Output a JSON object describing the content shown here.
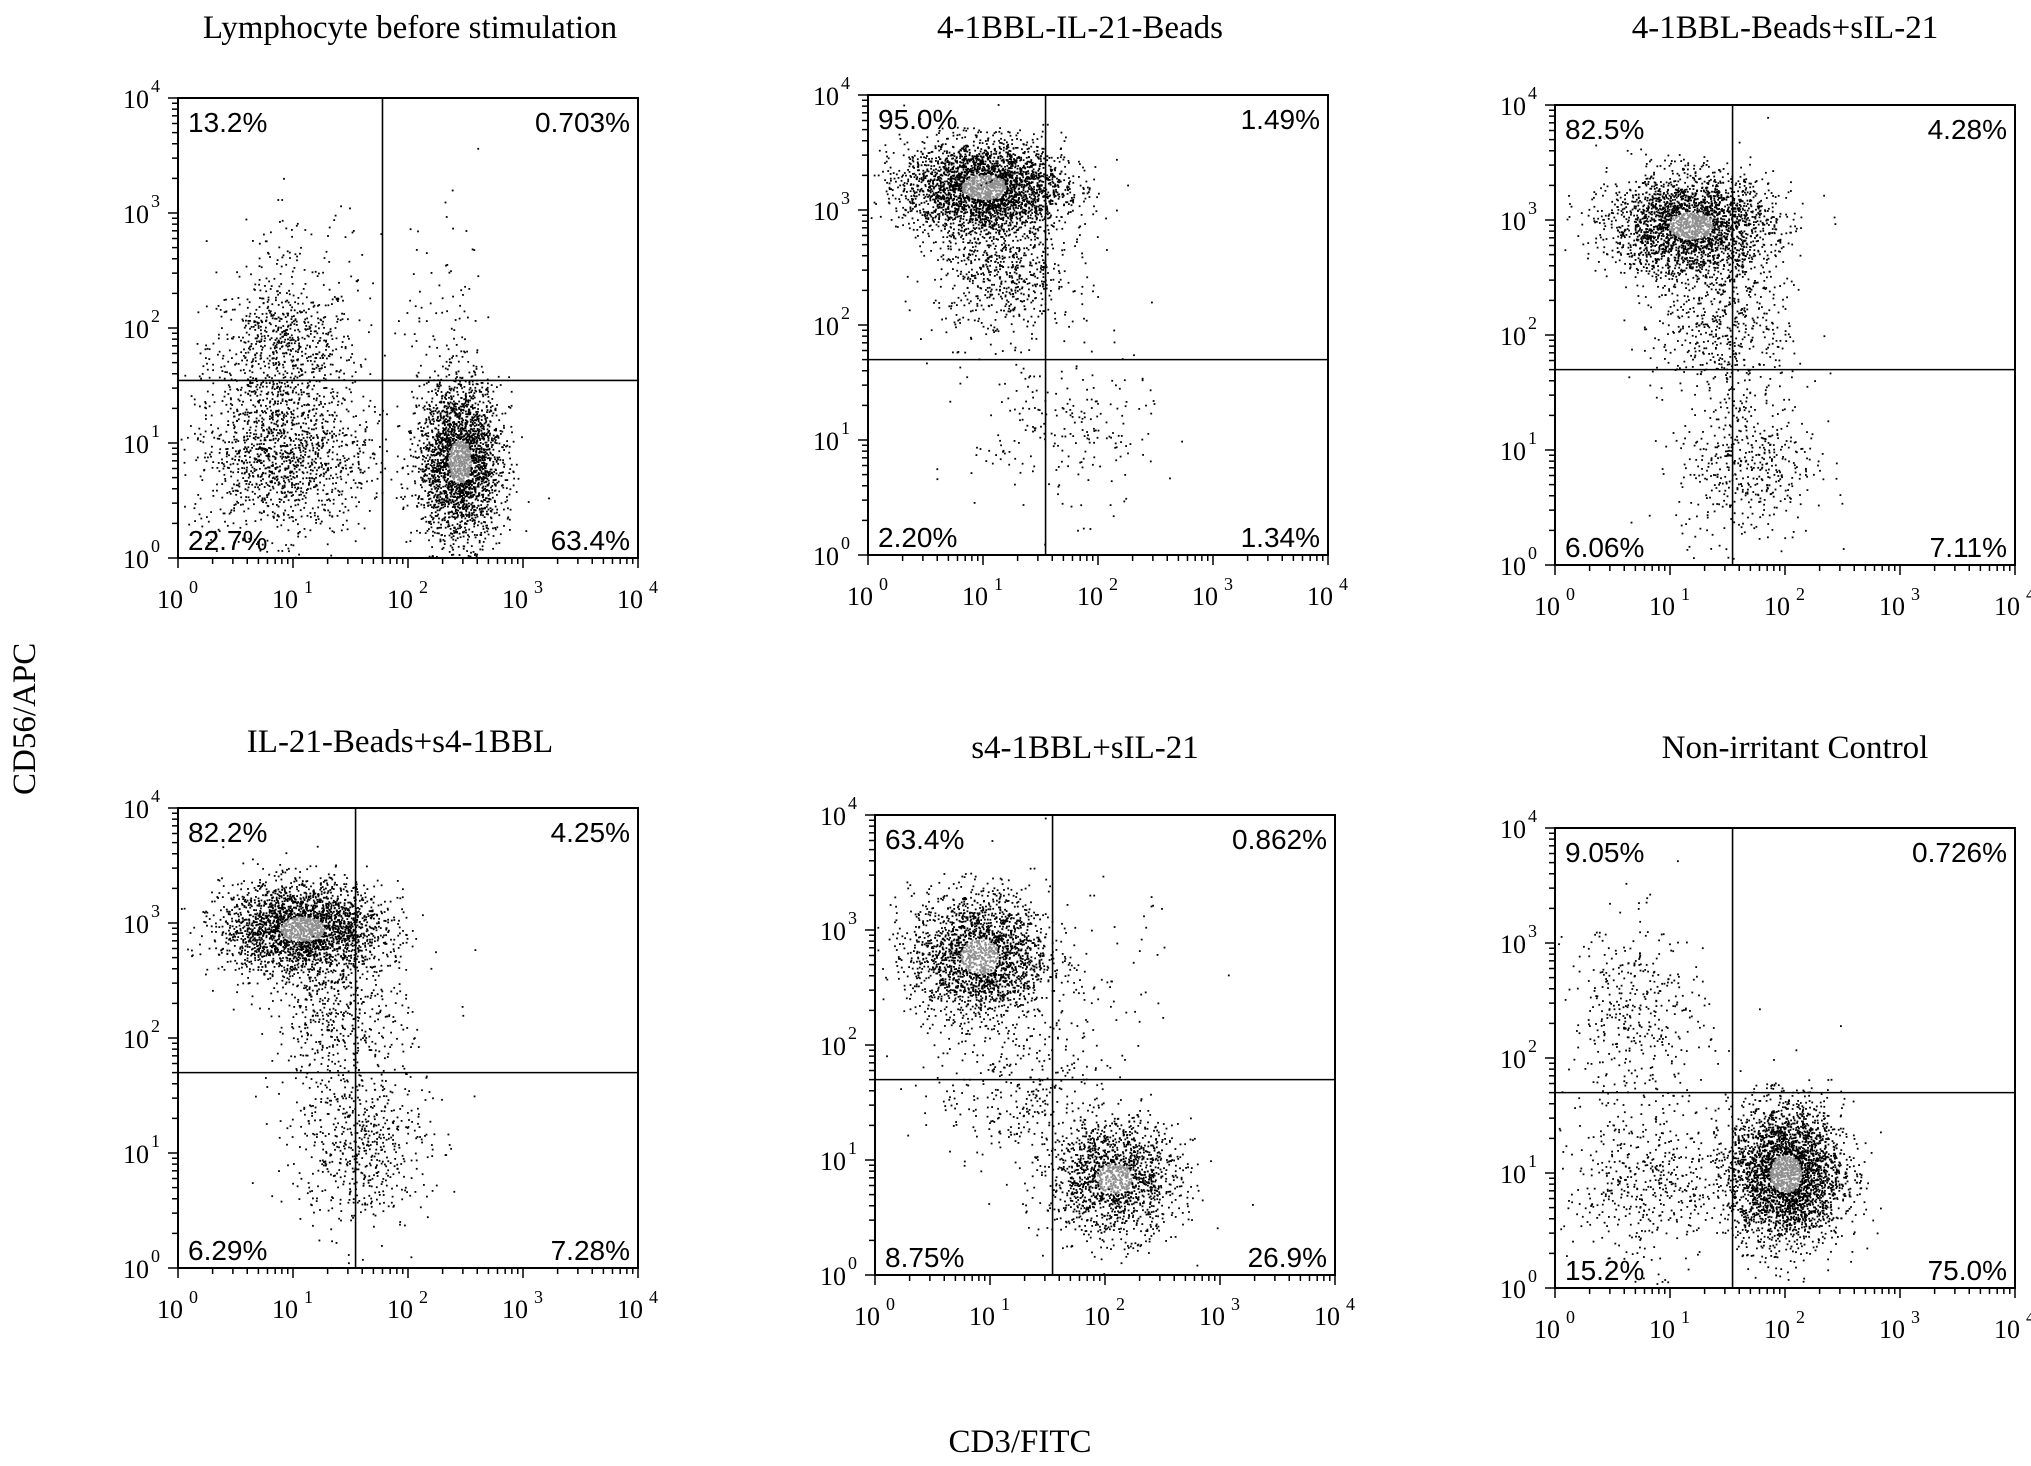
{
  "figure": {
    "ylabel": "CD56/APC",
    "xlabel": "CD3/FITC"
  },
  "axis": {
    "scale": "log",
    "range": [
      1,
      10000
    ],
    "tick_labels": [
      {
        "base": "10",
        "exp": "0"
      },
      {
        "base": "10",
        "exp": "1"
      },
      {
        "base": "10",
        "exp": "2"
      },
      {
        "base": "10",
        "exp": "3"
      },
      {
        "base": "10",
        "exp": "4"
      }
    ]
  },
  "style": {
    "event_color": "#000000",
    "dense_color": "#8f8f8f"
  },
  "chart_data": [
    {
      "type": "scatter",
      "title": "Lymphocyte before stimulation",
      "xscale": "log",
      "yscale": "log",
      "xlim": [
        1,
        10000
      ],
      "ylim": [
        1,
        10000
      ],
      "gate": {
        "x": 60,
        "y": 35
      },
      "quadrants": {
        "upper_left": "13.2%",
        "upper_right": "0.703%",
        "lower_left": "22.7%",
        "lower_right": "63.4%"
      },
      "clusters": [
        {
          "x": 8,
          "y": 70,
          "sx": 0.32,
          "sy": 0.28,
          "n": 700
        },
        {
          "x": 8,
          "y": 8,
          "sx": 0.38,
          "sy": 0.35,
          "n": 1400
        },
        {
          "x": 280,
          "y": 7,
          "sx": 0.18,
          "sy": 0.35,
          "n": 2600
        },
        {
          "x": 10,
          "y": 400,
          "sx": 0.3,
          "sy": 0.25,
          "n": 80
        },
        {
          "x": 200,
          "y": 120,
          "sx": 0.25,
          "sy": 0.45,
          "n": 70
        }
      ]
    },
    {
      "type": "scatter",
      "title": "4-1BBL-IL-21-Beads",
      "xscale": "log",
      "yscale": "log",
      "xlim": [
        1,
        10000
      ],
      "ylim": [
        1,
        10000
      ],
      "gate": {
        "x": 35,
        "y": 50
      },
      "quadrants": {
        "upper_left": "95.0%",
        "upper_right": "1.49%",
        "lower_left": "2.20%",
        "lower_right": "1.34%"
      },
      "clusters": [
        {
          "x": 10,
          "y": 1600,
          "sx": 0.35,
          "sy": 0.2,
          "n": 3000
        },
        {
          "x": 15,
          "y": 300,
          "sx": 0.3,
          "sy": 0.3,
          "n": 700
        },
        {
          "x": 50,
          "y": 12,
          "sx": 0.4,
          "sy": 0.35,
          "n": 220
        }
      ]
    },
    {
      "type": "scatter",
      "title": "4-1BBL-Beads+sIL-21",
      "xscale": "log",
      "yscale": "log",
      "xlim": [
        1,
        10000
      ],
      "ylim": [
        1,
        10000
      ],
      "gate": {
        "x": 35,
        "y": 50
      },
      "quadrants": {
        "upper_left": "82.5%",
        "upper_right": "4.28%",
        "lower_left": "6.06%",
        "lower_right": "7.11%"
      },
      "clusters": [
        {
          "x": 15,
          "y": 900,
          "sx": 0.35,
          "sy": 0.22,
          "n": 2700
        },
        {
          "x": 30,
          "y": 120,
          "sx": 0.3,
          "sy": 0.3,
          "n": 500
        },
        {
          "x": 45,
          "y": 8,
          "sx": 0.3,
          "sy": 0.35,
          "n": 500
        }
      ]
    },
    {
      "type": "scatter",
      "title": "IL-21-Beads+s4-1BBL",
      "xscale": "log",
      "yscale": "log",
      "xlim": [
        1,
        10000
      ],
      "ylim": [
        1,
        10000
      ],
      "gate": {
        "x": 35,
        "y": 50
      },
      "quadrants": {
        "upper_left": "82.2%",
        "upper_right": "4.25%",
        "lower_left": "6.29%",
        "lower_right": "7.28%"
      },
      "clusters": [
        {
          "x": 12,
          "y": 900,
          "sx": 0.35,
          "sy": 0.2,
          "n": 2700
        },
        {
          "x": 25,
          "y": 150,
          "sx": 0.3,
          "sy": 0.3,
          "n": 450
        },
        {
          "x": 38,
          "y": 12,
          "sx": 0.3,
          "sy": 0.35,
          "n": 600
        }
      ]
    },
    {
      "type": "scatter",
      "title": "s4-1BBL+sIL-21",
      "xscale": "log",
      "yscale": "log",
      "xlim": [
        1,
        10000
      ],
      "ylim": [
        1,
        10000
      ],
      "gate": {
        "x": 35,
        "y": 50
      },
      "quadrants": {
        "upper_left": "63.4%",
        "upper_right": "0.862%",
        "lower_left": "8.75%",
        "lower_right": "26.9%"
      },
      "clusters": [
        {
          "x": 8,
          "y": 600,
          "sx": 0.3,
          "sy": 0.28,
          "n": 2200
        },
        {
          "x": 120,
          "y": 7,
          "sx": 0.28,
          "sy": 0.25,
          "n": 1600
        },
        {
          "x": 20,
          "y": 40,
          "sx": 0.4,
          "sy": 0.35,
          "n": 350
        },
        {
          "x": 100,
          "y": 300,
          "sx": 0.3,
          "sy": 0.4,
          "n": 60
        }
      ]
    },
    {
      "type": "scatter",
      "title": "Non-irritant Control",
      "xscale": "log",
      "yscale": "log",
      "xlim": [
        1,
        10000
      ],
      "ylim": [
        1,
        10000
      ],
      "gate": {
        "x": 35,
        "y": 50
      },
      "quadrants": {
        "upper_left": "9.05%",
        "upper_right": "0.726%",
        "lower_left": "15.2%",
        "lower_right": "75.0%"
      },
      "clusters": [
        {
          "x": 5,
          "y": 250,
          "sx": 0.3,
          "sy": 0.4,
          "n": 400
        },
        {
          "x": 100,
          "y": 10,
          "sx": 0.25,
          "sy": 0.3,
          "n": 3200
        },
        {
          "x": 6,
          "y": 8,
          "sx": 0.35,
          "sy": 0.35,
          "n": 500
        }
      ]
    }
  ]
}
